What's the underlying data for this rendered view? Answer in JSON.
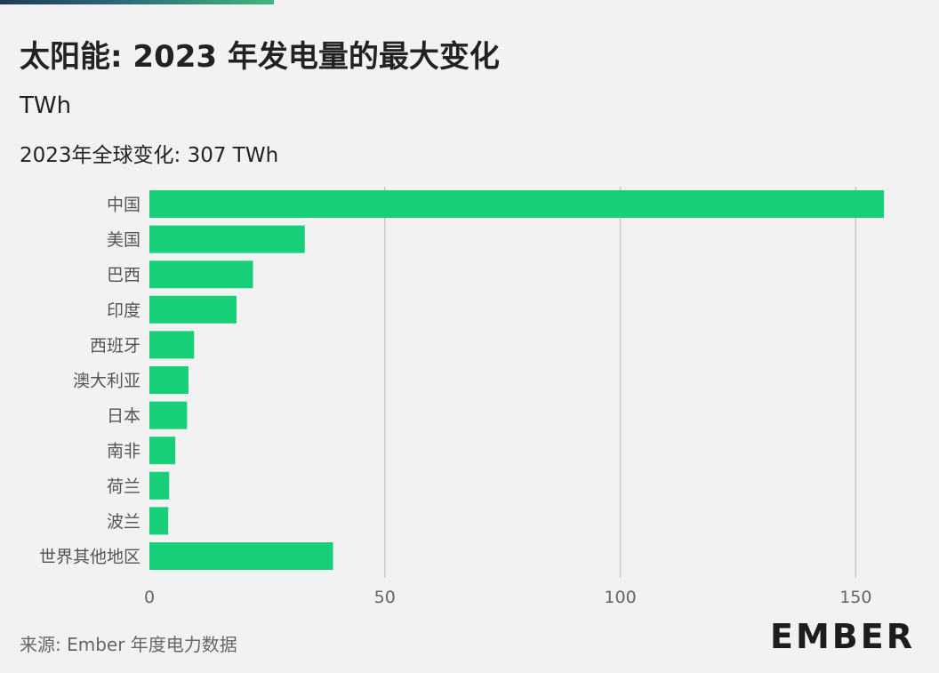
{
  "title": "太阳能: 2023 年发电量的最大变化",
  "unit": "TWh",
  "subtitle": "2023年全球变化: 307 TWh",
  "source": "来源: Ember 年度电力数据",
  "logo": "EMBER",
  "colors": {
    "bar": "#17cf78",
    "grid": "#c8c8c8",
    "background": "#f2f2f2"
  },
  "chart_data": {
    "type": "bar",
    "orientation": "horizontal",
    "categories": [
      "中国",
      "美国",
      "巴西",
      "印度",
      "西班牙",
      "澳大利亚",
      "日本",
      "南非",
      "荷兰",
      "波兰",
      "世界其他地区"
    ],
    "values": [
      156,
      33,
      22,
      18.5,
      9.5,
      8.3,
      8,
      5.5,
      4.2,
      4,
      39
    ],
    "xlim": [
      0,
      165
    ],
    "xticks": [
      0,
      50,
      100,
      150
    ],
    "grid": true,
    "legend": "none"
  }
}
